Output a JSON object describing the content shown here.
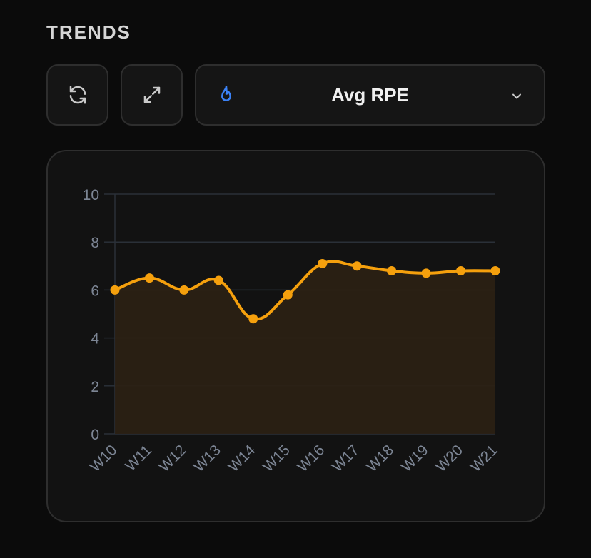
{
  "section": {
    "title": "TRENDS"
  },
  "toolbar": {
    "refresh_icon": "refresh-icon",
    "expand_icon": "expand-icon",
    "metric_select": {
      "icon": "flame-icon",
      "value": "Avg RPE",
      "chevron": "chevron-down-icon"
    }
  },
  "colors": {
    "line": "#f5a00d",
    "area": "#2b2114",
    "grid": "#2a3038",
    "tick": "#7c8594",
    "flame": "#3b82f6"
  },
  "chart_data": {
    "type": "area",
    "categories": [
      "W10",
      "W11",
      "W12",
      "W13",
      "W14",
      "W15",
      "W16",
      "W17",
      "W18",
      "W19",
      "W20",
      "W21"
    ],
    "series": [
      {
        "values": [
          6.0,
          6.5,
          6.0,
          6.4,
          4.8,
          5.8,
          7.1,
          7.0,
          6.8,
          6.7,
          6.8,
          6.8
        ]
      }
    ],
    "ylim": [
      0,
      10
    ],
    "yticks": [
      0,
      2,
      4,
      6,
      8,
      10
    ],
    "grid": true,
    "smooth": true,
    "legend": "none"
  }
}
